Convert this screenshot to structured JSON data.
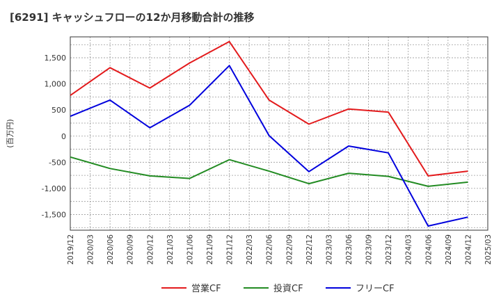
{
  "chart_data": {
    "type": "line",
    "title": "[6291]  キャッシュフローの12か月移動合計の推移",
    "ylabel": "(百万円)",
    "xlabel": "",
    "ylim": [
      -1800,
      1900
    ],
    "yticks": [
      -1500,
      -1000,
      -500,
      0,
      500,
      1000,
      1500
    ],
    "ytick_labels": [
      "-1,500",
      "-1,000",
      "-500",
      "0",
      "500",
      "1,000",
      "1,500"
    ],
    "categories": [
      "2019/12",
      "2020/03",
      "2020/06",
      "2020/09",
      "2020/12",
      "2021/03",
      "2021/06",
      "2021/09",
      "2021/12",
      "2022/03",
      "2022/06",
      "2022/09",
      "2022/12",
      "2023/03",
      "2023/06",
      "2023/09",
      "2023/12",
      "2024/03",
      "2024/06",
      "2024/09",
      "2024/12",
      "2025/03"
    ],
    "grid": true,
    "legend_position": "bottom",
    "series": [
      {
        "name": "営業CF",
        "color": "#e31a1c",
        "points": [
          [
            "2019/12",
            780
          ],
          [
            "2020/06",
            1310
          ],
          [
            "2020/12",
            920
          ],
          [
            "2021/06",
            1400
          ],
          [
            "2021/12",
            1810
          ],
          [
            "2022/06",
            690
          ],
          [
            "2022/12",
            230
          ],
          [
            "2023/06",
            520
          ],
          [
            "2023/12",
            460
          ],
          [
            "2024/06",
            -760
          ],
          [
            "2024/12",
            -670
          ]
        ]
      },
      {
        "name": "投資CF",
        "color": "#228b22",
        "points": [
          [
            "2019/12",
            -400
          ],
          [
            "2020/06",
            -620
          ],
          [
            "2020/12",
            -760
          ],
          [
            "2021/06",
            -810
          ],
          [
            "2021/12",
            -450
          ],
          [
            "2022/06",
            -670
          ],
          [
            "2022/12",
            -910
          ],
          [
            "2023/06",
            -710
          ],
          [
            "2023/12",
            -770
          ],
          [
            "2024/06",
            -960
          ],
          [
            "2024/12",
            -880
          ]
        ]
      },
      {
        "name": "フリーCF",
        "color": "#0000dd",
        "points": [
          [
            "2019/12",
            380
          ],
          [
            "2020/06",
            690
          ],
          [
            "2020/12",
            160
          ],
          [
            "2021/06",
            590
          ],
          [
            "2021/12",
            1350
          ],
          [
            "2022/06",
            10
          ],
          [
            "2022/12",
            -680
          ],
          [
            "2023/06",
            -190
          ],
          [
            "2023/12",
            -320
          ],
          [
            "2024/06",
            -1720
          ],
          [
            "2024/12",
            -1550
          ]
        ]
      }
    ]
  }
}
